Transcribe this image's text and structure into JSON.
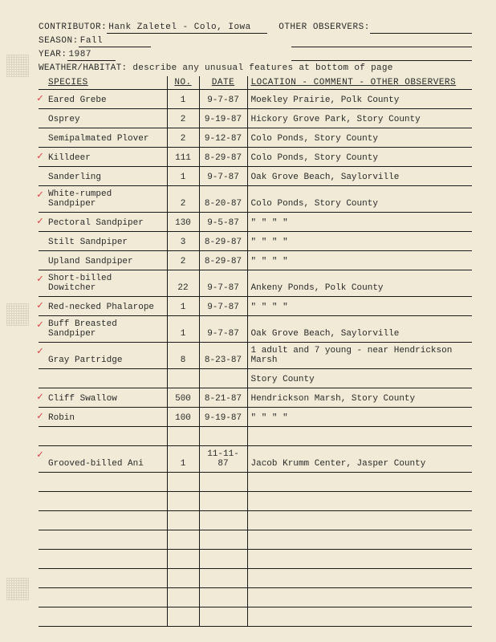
{
  "header": {
    "contributor_label": "CONTRIBUTOR:",
    "contributor_value": "Hank Zaletel - Colo, Iowa",
    "other_obs_label": "OTHER OBSERVERS:",
    "other_obs_value": "",
    "season_label": "SEASON:",
    "season_value": "Fall",
    "year_label": "YEAR:",
    "year_value": "1987",
    "weather_label": "WEATHER/HABITAT: describe any unusual features at bottom of page"
  },
  "columns": {
    "species": "SPECIES",
    "no": "NO.",
    "date": "DATE",
    "location": "LOCATION - COMMENT - OTHER OBSERVERS"
  },
  "rows": [
    {
      "check": true,
      "species": "Eared Grebe",
      "no": "1",
      "date": "9-7-87",
      "location": "Moekley Prairie, Polk County"
    },
    {
      "check": false,
      "species": "Osprey",
      "no": "2",
      "date": "9-19-87",
      "location": "Hickory Grove Park, Story County"
    },
    {
      "check": false,
      "species": "Semipalmated Plover",
      "no": "2",
      "date": "9-12-87",
      "location": "Colo Ponds, Story County"
    },
    {
      "check": true,
      "species": "Killdeer",
      "no": "111",
      "date": "8-29-87",
      "location": "Colo Ponds, Story County"
    },
    {
      "check": false,
      "species": "Sanderling",
      "no": "1",
      "date": "9-7-87",
      "location": "Oak Grove Beach, Saylorville"
    },
    {
      "check": true,
      "species": "White-rumped Sandpiper",
      "no": "2",
      "date": "8-20-87",
      "location": "Colo Ponds, Story County"
    },
    {
      "check": true,
      "species": "Pectoral Sandpiper",
      "no": "130",
      "date": "9-5-87",
      "location": "\"    \"    \"    \"",
      "ditto": true
    },
    {
      "check": false,
      "species": "Stilt Sandpiper",
      "no": "3",
      "date": "8-29-87",
      "location": "\"    \"    \"    \"",
      "ditto": true
    },
    {
      "check": false,
      "species": "Upland Sandpiper",
      "no": "2",
      "date": "8-29-87",
      "location": "\"    \"    \"    \"",
      "ditto": true
    },
    {
      "check": true,
      "species": "Short-billed Dowitcher",
      "no": "22",
      "date": "9-7-87",
      "location": "Ankeny Ponds, Polk County"
    },
    {
      "check": true,
      "species": "Red-necked Phalarope",
      "no": "1",
      "date": "9-7-87",
      "location": "\"    \"    \"    \"",
      "ditto": true
    },
    {
      "check": true,
      "species": "Buff Breasted Sandpiper",
      "no": "1",
      "date": "9-7-87",
      "location": "Oak Grove Beach, Saylorville"
    },
    {
      "check": true,
      "species": "Gray Partridge",
      "no": "8",
      "date": "8-23-87",
      "location": "1 adult and 7 young - near Hendrickson Marsh"
    },
    {
      "check": false,
      "species": "",
      "no": "",
      "date": "",
      "location": "Story County"
    },
    {
      "check": true,
      "species": "Cliff Swallow",
      "no": "500",
      "date": "8-21-87",
      "location": "Hendrickson Marsh, Story County"
    },
    {
      "check": true,
      "species": "Robin",
      "no": "100",
      "date": "9-19-87",
      "location": "\"    \"    \"    \"",
      "ditto": true
    },
    {
      "check": false,
      "species": "",
      "no": "",
      "date": "",
      "location": ""
    },
    {
      "check": true,
      "species": "Grooved-billed Ani",
      "no": "1",
      "date": "11-11-87",
      "location": "Jacob Krumm Center, Jasper County"
    },
    {
      "check": false,
      "species": "",
      "no": "",
      "date": "",
      "location": ""
    },
    {
      "check": false,
      "species": "",
      "no": "",
      "date": "",
      "location": ""
    },
    {
      "check": false,
      "species": "",
      "no": "",
      "date": "",
      "location": ""
    },
    {
      "check": false,
      "species": "",
      "no": "",
      "date": "",
      "location": ""
    },
    {
      "check": false,
      "species": "",
      "no": "",
      "date": "",
      "location": ""
    },
    {
      "check": false,
      "species": "",
      "no": "",
      "date": "",
      "location": ""
    },
    {
      "check": false,
      "species": "",
      "no": "",
      "date": "",
      "location": ""
    },
    {
      "check": false,
      "species": "",
      "no": "",
      "date": "",
      "location": ""
    }
  ],
  "check_glyph": "✓"
}
